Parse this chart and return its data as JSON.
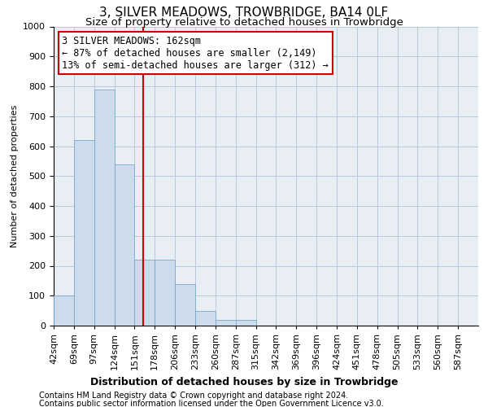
{
  "title": "3, SILVER MEADOWS, TROWBRIDGE, BA14 0LF",
  "subtitle": "Size of property relative to detached houses in Trowbridge",
  "xlabel": "Distribution of detached houses by size in Trowbridge",
  "ylabel": "Number of detached properties",
  "footnote1": "Contains HM Land Registry data © Crown copyright and database right 2024.",
  "footnote2": "Contains public sector information licensed under the Open Government Licence v3.0.",
  "bin_labels": [
    "42sqm",
    "69sqm",
    "97sqm",
    "124sqm",
    "151sqm",
    "178sqm",
    "206sqm",
    "233sqm",
    "260sqm",
    "287sqm",
    "315sqm",
    "342sqm",
    "369sqm",
    "396sqm",
    "424sqm",
    "451sqm",
    "478sqm",
    "505sqm",
    "533sqm",
    "560sqm",
    "587sqm"
  ],
  "bar_values": [
    100,
    620,
    790,
    540,
    220,
    220,
    140,
    50,
    20,
    20,
    0,
    0,
    0,
    0,
    0,
    0,
    0,
    0,
    0,
    0
  ],
  "bar_color": "#ccdcec",
  "bar_edge_color": "#7aa8cc",
  "annotation_line1": "3 SILVER MEADOWS: 162sqm",
  "annotation_line2": "← 87% of detached houses are smaller (2,149)",
  "annotation_line3": "13% of semi-detached houses are larger (312) →",
  "ylim": [
    0,
    1000
  ],
  "yticks": [
    0,
    100,
    200,
    300,
    400,
    500,
    600,
    700,
    800,
    900,
    1000
  ],
  "background_color": "#e8eef4",
  "grid_color": "#b0c4d8",
  "title_fontsize": 11,
  "subtitle_fontsize": 9.5,
  "annotation_fontsize": 8.5,
  "ylabel_fontsize": 8,
  "xlabel_fontsize": 9,
  "tick_fontsize": 8,
  "footnote_fontsize": 7
}
